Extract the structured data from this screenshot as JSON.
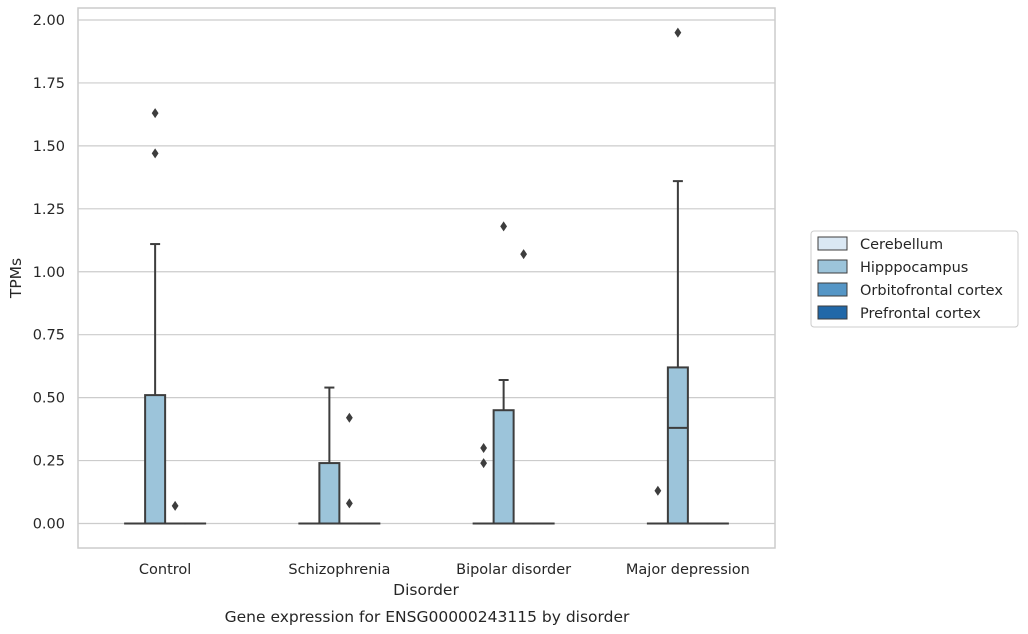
{
  "chart_data": {
    "type": "box",
    "caption": "Gene expression for ENSG00000243115 by disorder",
    "xlabel": "Disorder",
    "ylabel": "TPMs",
    "ylim": [
      -0.095,
      2.05
    ],
    "yticks": [
      "0.00",
      "0.25",
      "0.50",
      "0.75",
      "1.00",
      "1.25",
      "1.50",
      "1.75",
      "2.00"
    ],
    "grid": "horizontal",
    "legend_position": "right",
    "categories": [
      "Control",
      "Schizophrenia",
      "Bipolar disorder",
      "Major depression"
    ],
    "series": [
      {
        "name": "Cerebellum",
        "color": "#dae8f4",
        "boxes": [
          {
            "q1": 0,
            "median": 0,
            "q3": 0,
            "whisker_low": 0,
            "whisker_high": 0,
            "outliers": []
          },
          {
            "q1": 0,
            "median": 0,
            "q3": 0,
            "whisker_low": 0,
            "whisker_high": 0,
            "outliers": []
          },
          {
            "q1": 0,
            "median": 0,
            "q3": 0,
            "whisker_low": 0,
            "whisker_high": 0,
            "outliers": []
          },
          {
            "q1": 0,
            "median": 0,
            "q3": 0,
            "whisker_low": 0,
            "whisker_high": 0,
            "outliers": []
          }
        ]
      },
      {
        "name": "Hipppocampus",
        "color": "#9cc4da",
        "boxes": [
          {
            "q1": 0,
            "median": 0,
            "q3": 0.51,
            "whisker_low": 0,
            "whisker_high": 1.11,
            "outliers": [
              1.47,
              1.63
            ]
          },
          {
            "q1": 0,
            "median": 0,
            "q3": 0.24,
            "whisker_low": 0,
            "whisker_high": 0.54,
            "outliers": []
          },
          {
            "q1": 0,
            "median": 0,
            "q3": 0.45,
            "whisker_low": 0,
            "whisker_high": 0.57,
            "outliers": [
              1.18
            ]
          },
          {
            "q1": 0,
            "median": 0.38,
            "q3": 0.62,
            "whisker_low": 0,
            "whisker_high": 1.36,
            "outliers": [
              1.95
            ]
          }
        ]
      },
      {
        "name": "Orbitofrontal cortex",
        "color": "#5596c6",
        "boxes": [
          {
            "q1": 0,
            "median": 0,
            "q3": 0,
            "whisker_low": 0,
            "whisker_high": 0,
            "outliers": [
              0.07
            ]
          },
          {
            "q1": 0,
            "median": 0,
            "q3": 0,
            "whisker_low": 0,
            "whisker_high": 0,
            "outliers": [
              0.42,
              0.08
            ]
          },
          {
            "q1": 0,
            "median": 0,
            "q3": 0,
            "whisker_low": 0,
            "whisker_high": 0,
            "outliers": [
              1.07
            ]
          },
          {
            "q1": 0,
            "median": 0,
            "q3": 0,
            "whisker_low": 0,
            "whisker_high": 0,
            "outliers": []
          }
        ]
      },
      {
        "name": "Prefrontal cortex",
        "color": "#2168a8",
        "boxes": [
          {
            "q1": 0,
            "median": 0,
            "q3": 0,
            "whisker_low": 0,
            "whisker_high": 0,
            "outliers": []
          },
          {
            "q1": 0,
            "median": 0,
            "q3": 0,
            "whisker_low": 0,
            "whisker_high": 0,
            "outliers": []
          },
          {
            "q1": 0,
            "median": 0,
            "q3": 0,
            "whisker_low": 0,
            "whisker_high": 0,
            "outliers": []
          },
          {
            "q1": 0,
            "median": 0,
            "q3": 0,
            "whisker_low": 0,
            "whisker_high": 0,
            "outliers": []
          }
        ]
      }
    ],
    "extra_outliers": [
      {
        "category": "Bipolar disorder",
        "series": "Cerebellum",
        "values": [
          0.3,
          0.24
        ]
      },
      {
        "category": "Major depression",
        "series": "Cerebellum",
        "values": [
          0.13
        ]
      }
    ]
  }
}
